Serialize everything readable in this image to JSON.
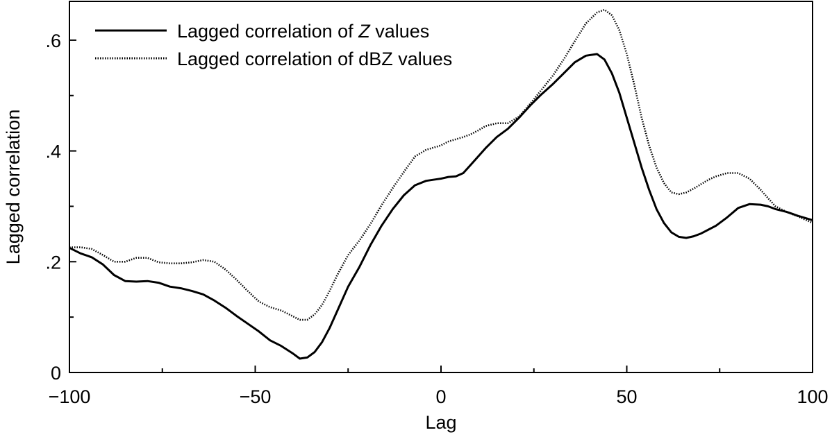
{
  "chart_data": {
    "type": "line",
    "xlabel": "Lag",
    "ylabel": "Lagged correlation",
    "xlim": [
      -100,
      100
    ],
    "ylim": [
      0,
      0.67
    ],
    "x_ticks": [
      -100,
      -50,
      0,
      50,
      100
    ],
    "x_tick_labels": [
      "−100",
      "−50",
      "0",
      "50",
      "100"
    ],
    "y_ticks": [
      0,
      0.2,
      0.4,
      0.6
    ],
    "y_tick_labels": [
      "0",
      ".2",
      ".4",
      ".6"
    ],
    "legend": {
      "placement": "top-left",
      "entries": [
        {
          "prefix": "Lagged correlation of ",
          "italic": "Z",
          "suffix": " values",
          "style": "solid"
        },
        {
          "prefix": "Lagged correlation of dBZ values",
          "italic": "",
          "suffix": "",
          "style": "dotted"
        }
      ]
    },
    "series": [
      {
        "style": "solid",
        "x": [
          -100,
          -97,
          -94,
          -91,
          -88,
          -85,
          -82,
          -79,
          -76,
          -73,
          -70,
          -67,
          -64,
          -61,
          -58,
          -55,
          -52,
          -49,
          -46,
          -43,
          -40,
          -38,
          -36,
          -34,
          -32,
          -30,
          -28,
          -25,
          -22,
          -19,
          -16,
          -13,
          -10,
          -7,
          -4,
          -1,
          0,
          2,
          4,
          6,
          8,
          10,
          12,
          15,
          18,
          21,
          24,
          27,
          30,
          33,
          36,
          39,
          42,
          44,
          46,
          48,
          50,
          52,
          54,
          56,
          58,
          60,
          62,
          64,
          66,
          68,
          70,
          72,
          74,
          77,
          80,
          83,
          86,
          88,
          90,
          93,
          96,
          100
        ],
        "y": [
          0.225,
          0.215,
          0.208,
          0.195,
          0.176,
          0.165,
          0.164,
          0.165,
          0.162,
          0.155,
          0.152,
          0.147,
          0.141,
          0.13,
          0.117,
          0.102,
          0.088,
          0.074,
          0.058,
          0.048,
          0.035,
          0.025,
          0.027,
          0.037,
          0.055,
          0.08,
          0.11,
          0.155,
          0.19,
          0.23,
          0.265,
          0.295,
          0.32,
          0.338,
          0.346,
          0.349,
          0.35,
          0.353,
          0.354,
          0.36,
          0.375,
          0.39,
          0.405,
          0.425,
          0.44,
          0.46,
          0.482,
          0.502,
          0.52,
          0.54,
          0.56,
          0.572,
          0.575,
          0.565,
          0.54,
          0.505,
          0.46,
          0.415,
          0.37,
          0.33,
          0.295,
          0.27,
          0.253,
          0.245,
          0.243,
          0.246,
          0.251,
          0.258,
          0.265,
          0.28,
          0.297,
          0.304,
          0.303,
          0.3,
          0.295,
          0.29,
          0.283,
          0.275
        ]
      },
      {
        "style": "dotted",
        "x": [
          -100,
          -97,
          -94,
          -91,
          -88,
          -85,
          -82,
          -79,
          -76,
          -73,
          -70,
          -67,
          -64,
          -61,
          -58,
          -55,
          -52,
          -49,
          -46,
          -43,
          -40,
          -38,
          -36,
          -34,
          -32,
          -30,
          -28,
          -25,
          -22,
          -19,
          -16,
          -13,
          -10,
          -7,
          -4,
          -1,
          0,
          2,
          4,
          6,
          8,
          10,
          12,
          15,
          18,
          21,
          24,
          27,
          30,
          33,
          36,
          39,
          42,
          44,
          46,
          48,
          50,
          52,
          54,
          56,
          58,
          60,
          62,
          64,
          66,
          68,
          70,
          72,
          74,
          77,
          80,
          83,
          86,
          88,
          90,
          93,
          96,
          100
        ],
        "y": [
          0.226,
          0.226,
          0.223,
          0.212,
          0.2,
          0.2,
          0.207,
          0.207,
          0.199,
          0.197,
          0.197,
          0.199,
          0.203,
          0.2,
          0.186,
          0.167,
          0.147,
          0.128,
          0.118,
          0.112,
          0.102,
          0.095,
          0.095,
          0.105,
          0.122,
          0.147,
          0.175,
          0.212,
          0.238,
          0.268,
          0.302,
          0.333,
          0.362,
          0.39,
          0.402,
          0.408,
          0.41,
          0.417,
          0.421,
          0.425,
          0.43,
          0.437,
          0.445,
          0.45,
          0.45,
          0.462,
          0.485,
          0.51,
          0.535,
          0.565,
          0.598,
          0.63,
          0.65,
          0.655,
          0.645,
          0.618,
          0.575,
          0.52,
          0.46,
          0.41,
          0.37,
          0.342,
          0.325,
          0.322,
          0.325,
          0.332,
          0.34,
          0.348,
          0.354,
          0.36,
          0.36,
          0.35,
          0.33,
          0.315,
          0.3,
          0.29,
          0.282,
          0.27
        ]
      }
    ]
  }
}
